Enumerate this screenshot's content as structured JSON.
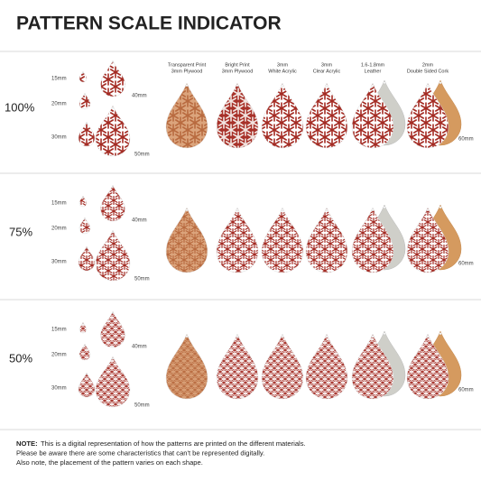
{
  "title": "PATTERN SCALE INDICATOR",
  "materials": [
    {
      "lines": [
        "Transparent Print",
        "3mm Plywood"
      ]
    },
    {
      "lines": [
        "Bright Print",
        "3mm Plywood"
      ]
    },
    {
      "lines": [
        "3mm",
        "White Acrylic"
      ]
    },
    {
      "lines": [
        "3mm",
        "Clear Acrylic"
      ]
    },
    {
      "lines": [
        "1.6-1.8mm",
        "Leather"
      ]
    },
    {
      "lines": [
        "2mm",
        "Double Sided Cork"
      ]
    }
  ],
  "rows": [
    {
      "scale": "100%",
      "sizes": [
        "15mm",
        "20mm",
        "30mm",
        "40mm",
        "50mm"
      ],
      "material_size": "60mm"
    },
    {
      "scale": "75%",
      "sizes": [
        "15mm",
        "20mm",
        "30mm",
        "40mm",
        "50mm"
      ],
      "material_size": "60mm"
    },
    {
      "scale": "50%",
      "sizes": [
        "15mm",
        "20mm",
        "30mm",
        "40mm",
        "50mm"
      ],
      "material_size": "60mm"
    }
  ],
  "note": {
    "label": "NOTE:",
    "lines": [
      "This is a digital representation of how the patterns are printed on the different materials.",
      "Please be aware there are some characteristics that can't be represented digitally.",
      "Also note, the placement of the pattern varies on each shape."
    ]
  }
}
